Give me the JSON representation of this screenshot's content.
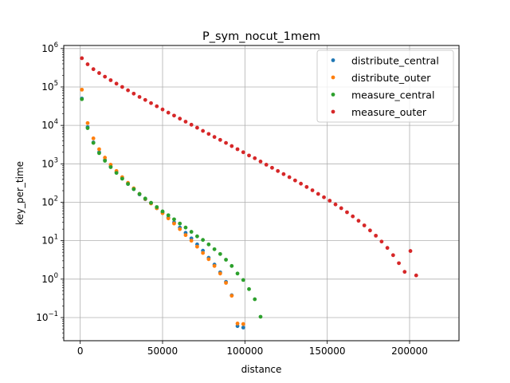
{
  "chart_data": {
    "type": "scatter",
    "title": "P_sym_nocut_1mem",
    "xlabel": "distance",
    "ylabel": "key_per_time",
    "xlim": [
      -10000,
      230000
    ],
    "ylim": [
      0.025,
      1200000
    ],
    "yscale": "log",
    "grid": true,
    "legend_position": "top-right",
    "x_ticks": [
      0,
      50000,
      100000,
      150000,
      200000
    ],
    "x_tick_labels": [
      "0",
      "50000",
      "100000",
      "150000",
      "200000"
    ],
    "y_ticks": [
      0.1,
      1,
      10,
      100,
      1000,
      10000,
      100000,
      1000000
    ],
    "y_tick_labels": [
      {
        "base": "10",
        "exp": "−1"
      },
      {
        "base": "10",
        "exp": "0"
      },
      {
        "base": "10",
        "exp": "1"
      },
      {
        "base": "10",
        "exp": "2"
      },
      {
        "base": "10",
        "exp": "3"
      },
      {
        "base": "10",
        "exp": "4"
      },
      {
        "base": "10",
        "exp": "5"
      },
      {
        "base": "10",
        "exp": "6"
      }
    ],
    "series": [
      {
        "name": "distribute_central",
        "color": "#1f77b4",
        "x": [
          1000,
          4500,
          8000,
          11500,
          15000,
          18500,
          22000,
          25500,
          29000,
          32500,
          36000,
          39500,
          43000,
          46500,
          50000,
          53500,
          57000,
          60500,
          64000,
          67500,
          71000,
          74500,
          78000,
          81500,
          85000,
          88500,
          92000,
          95500,
          99000
        ],
        "y": [
          50000,
          9000,
          3600,
          2000,
          1250,
          850,
          600,
          420,
          300,
          220,
          160,
          120,
          95,
          70,
          55,
          40,
          30,
          22,
          16,
          11.5,
          8,
          5.5,
          3.6,
          2.4,
          1.5,
          0.85,
          0.38,
          0.06,
          0.055
        ]
      },
      {
        "name": "distribute_outer",
        "color": "#ff7f0e",
        "x": [
          1000,
          4500,
          8000,
          11500,
          15000,
          18500,
          22000,
          25500,
          29000,
          32500,
          36000,
          39500,
          43000,
          46500,
          50000,
          53500,
          57000,
          60500,
          64000,
          67500,
          71000,
          74500,
          78000,
          81500,
          85000,
          88500,
          92000,
          95500,
          99000
        ],
        "y": [
          85000,
          11500,
          4600,
          2400,
          1450,
          950,
          650,
          450,
          320,
          230,
          165,
          122,
          93,
          70,
          52,
          38,
          28,
          20,
          14,
          10,
          7,
          4.8,
          3.3,
          2.2,
          1.4,
          0.8,
          0.37,
          0.07,
          0.068
        ]
      },
      {
        "name": "measure_central",
        "color": "#2ca02c",
        "x": [
          1000,
          4500,
          8000,
          11500,
          15000,
          18500,
          22000,
          25500,
          29000,
          32500,
          36000,
          39500,
          43000,
          46500,
          50000,
          53500,
          57000,
          60500,
          64000,
          67500,
          71000,
          74500,
          78000,
          81500,
          85000,
          88500,
          92000,
          95500,
          99000,
          102500,
          106000,
          109500
        ],
        "y": [
          48000,
          8500,
          3500,
          1900,
          1200,
          820,
          580,
          410,
          300,
          220,
          165,
          125,
          97,
          75,
          58,
          46,
          36,
          28,
          22,
          17,
          13,
          10.5,
          8,
          6,
          4.5,
          3.2,
          2.2,
          1.4,
          0.95,
          0.55,
          0.3,
          0.105
        ]
      },
      {
        "name": "measure_outer",
        "color": "#d62728",
        "x": [
          1000,
          4500,
          8000,
          11500,
          15000,
          18500,
          22000,
          25500,
          29000,
          32500,
          36000,
          39500,
          43000,
          46500,
          50000,
          53500,
          57000,
          60500,
          64000,
          67500,
          71000,
          74500,
          78000,
          81500,
          85000,
          88500,
          92000,
          95500,
          99000,
          102500,
          106000,
          109500,
          113000,
          116500,
          120000,
          123500,
          127000,
          130500,
          134000,
          137500,
          141000,
          144500,
          148000,
          151500,
          155000,
          158500,
          162000,
          165500,
          169000,
          172500,
          176000,
          179500,
          183000,
          186500,
          190000,
          193500,
          197000,
          200500,
          204000
        ],
        "y": [
          560000,
          390000,
          290000,
          230000,
          185000,
          150000,
          122000,
          100000,
          82000,
          67000,
          55000,
          46000,
          38000,
          31500,
          26000,
          21500,
          18000,
          15000,
          12500,
          10400,
          8700,
          7200,
          6000,
          5000,
          4200,
          3500,
          2900,
          2400,
          2000,
          1650,
          1400,
          1150,
          950,
          790,
          650,
          540,
          450,
          370,
          305,
          250,
          205,
          165,
          135,
          110,
          88,
          70,
          55,
          43,
          33,
          25,
          18.5,
          13.5,
          9.5,
          6.5,
          4.2,
          2.6,
          1.55,
          5.4,
          1.25
        ]
      }
    ]
  }
}
